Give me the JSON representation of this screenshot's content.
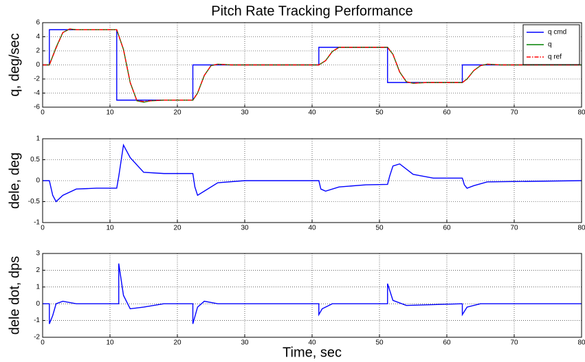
{
  "chart_data": [
    {
      "type": "line",
      "title": "Pitch Rate Tracking Performance",
      "ylabel": "q, deg/sec",
      "x": [
        0,
        1,
        1,
        2,
        3,
        4,
        5,
        11,
        11,
        12,
        13,
        14,
        15,
        16,
        18,
        22.3,
        22.3,
        23,
        24,
        25,
        26,
        28,
        41,
        41,
        42,
        43,
        44,
        46,
        51.2,
        51.2,
        52,
        53,
        54,
        55,
        57,
        62.3,
        62.3,
        63,
        64,
        65,
        66,
        68,
        80
      ],
      "series": [
        {
          "name": "q cmd",
          "color": "#0000ff",
          "linestyle": "solid",
          "values": [
            0,
            0,
            5,
            5,
            5,
            5,
            5,
            5,
            -5,
            -5,
            -5,
            -5,
            -5,
            -5,
            -5,
            -5,
            0,
            0,
            0,
            0,
            0,
            0,
            0,
            2.5,
            2.5,
            2.5,
            2.5,
            2.5,
            2.5,
            -2.5,
            -2.5,
            -2.5,
            -2.5,
            -2.5,
            -2.5,
            -2.5,
            0,
            0,
            0,
            0,
            0,
            0,
            0
          ]
        },
        {
          "name": "q",
          "color": "#008000",
          "linestyle": "solid",
          "values": [
            0,
            0,
            0,
            2.5,
            4.6,
            5.1,
            5,
            5,
            5,
            2.2,
            -2.5,
            -5.1,
            -5.3,
            -5.1,
            -5,
            -5,
            -5,
            -4,
            -1.5,
            -0.1,
            0.1,
            0,
            0,
            0,
            0.6,
            1.9,
            2.5,
            2.5,
            2.5,
            2.5,
            1.5,
            -1,
            -2.4,
            -2.6,
            -2.5,
            -2.5,
            -2.5,
            -2,
            -0.8,
            -0.1,
            0.1,
            0,
            0
          ]
        },
        {
          "name": "q ref",
          "color": "#ff0000",
          "linestyle": "dashdot",
          "values": [
            0,
            0,
            0,
            2.4,
            4.6,
            5.1,
            5,
            5,
            5,
            2.2,
            -2.5,
            -5.1,
            -5.2,
            -5.1,
            -5,
            -5,
            -5,
            -4,
            -1.5,
            -0.1,
            0.1,
            0,
            0,
            0,
            0.6,
            1.9,
            2.5,
            2.5,
            2.5,
            2.5,
            1.5,
            -1,
            -2.4,
            -2.6,
            -2.5,
            -2.5,
            -2.5,
            -2,
            -0.8,
            -0.1,
            0.1,
            0,
            0
          ]
        }
      ],
      "xlim": [
        0,
        80
      ],
      "xticks": [
        0,
        10,
        20,
        30,
        40,
        50,
        60,
        70,
        80
      ],
      "ylim": [
        -6,
        6
      ],
      "yticks": [
        -6,
        -4,
        -2,
        0,
        2,
        4,
        6
      ],
      "grid": true,
      "legend": "upper right"
    },
    {
      "type": "line",
      "ylabel": "dele, deg",
      "x": [
        0,
        1,
        1.5,
        2,
        3,
        5,
        8,
        11,
        11.3,
        12,
        13,
        15,
        18,
        22.3,
        22.6,
        23,
        24,
        26,
        30,
        41,
        41.3,
        42,
        44,
        48,
        51.2,
        51.5,
        52,
        53,
        55,
        58,
        62.3,
        62.6,
        63,
        64,
        66,
        80
      ],
      "series": [
        {
          "color": "#0000ff",
          "linestyle": "solid",
          "values": [
            0,
            0,
            -0.35,
            -0.5,
            -0.35,
            -0.2,
            -0.18,
            -0.18,
            0.1,
            0.85,
            0.55,
            0.2,
            0.17,
            0.17,
            -0.15,
            -0.35,
            -0.25,
            -0.05,
            0,
            0,
            -0.2,
            -0.25,
            -0.15,
            -0.1,
            -0.09,
            0.1,
            0.35,
            0.4,
            0.15,
            0.06,
            0.06,
            -0.1,
            -0.18,
            -0.12,
            -0.03,
            0
          ]
        }
      ],
      "xlim": [
        0,
        80
      ],
      "xticks": [
        0,
        10,
        20,
        30,
        40,
        50,
        60,
        70,
        80
      ],
      "ylim": [
        -1,
        1
      ],
      "yticks": [
        -1,
        -0.5,
        0,
        0.5,
        1
      ],
      "grid": true
    },
    {
      "type": "line",
      "ylabel": "dele dot, dps",
      "xlabel": "Time, sec",
      "x": [
        0,
        1,
        1,
        1.5,
        2,
        3,
        5,
        11,
        11.3,
        11.3,
        12,
        13,
        15,
        18,
        22.3,
        22.3,
        23,
        24,
        26,
        41,
        41,
        41.5,
        43,
        51.2,
        51.2,
        52,
        54,
        62.3,
        62.3,
        63,
        65,
        80
      ],
      "series": [
        {
          "color": "#0000ff",
          "linestyle": "solid",
          "values": [
            0,
            0,
            -1.2,
            -0.7,
            0,
            0.15,
            0,
            0,
            0,
            2.4,
            0.5,
            -0.3,
            -0.2,
            0,
            0,
            -1.2,
            -0.2,
            0.15,
            0,
            0,
            -0.65,
            -0.3,
            0,
            0,
            1.2,
            0.2,
            -0.1,
            0,
            -0.65,
            -0.2,
            0,
            0
          ]
        }
      ],
      "xlim": [
        0,
        80
      ],
      "xticks": [
        0,
        10,
        20,
        30,
        40,
        50,
        60,
        70,
        80
      ],
      "ylim": [
        -2,
        3
      ],
      "yticks": [
        -2,
        -1,
        0,
        1,
        2,
        3
      ],
      "grid": true
    }
  ]
}
